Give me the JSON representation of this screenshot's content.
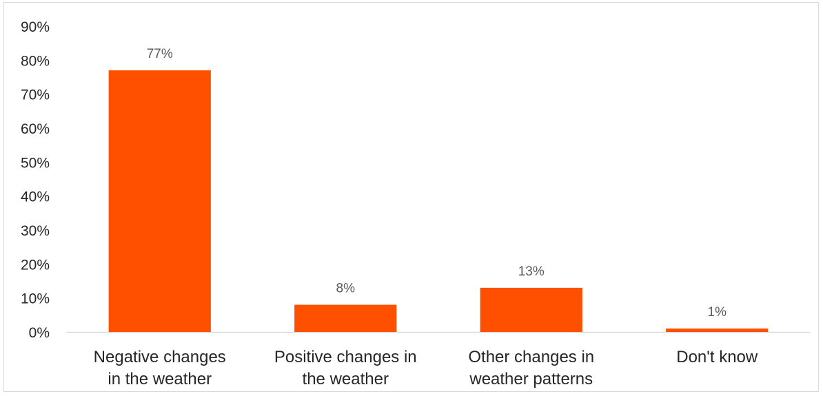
{
  "chart_data": {
    "type": "bar",
    "categories": [
      [
        "Negative changes",
        "in the weather"
      ],
      [
        "Positive changes in",
        "the weather"
      ],
      [
        "Other changes in",
        "weather patterns"
      ],
      [
        "Don't know"
      ]
    ],
    "values": [
      77,
      8,
      13,
      1
    ],
    "data_labels": [
      "77%",
      "8%",
      "13%",
      "1%"
    ],
    "yticks": [
      "0%",
      "10%",
      "20%",
      "30%",
      "40%",
      "50%",
      "60%",
      "70%",
      "80%",
      "90%"
    ],
    "ylim": [
      0,
      90
    ],
    "grid": false,
    "legend": "none",
    "bar_color": "#ff5000",
    "axis_color": "#d9d9d9"
  }
}
